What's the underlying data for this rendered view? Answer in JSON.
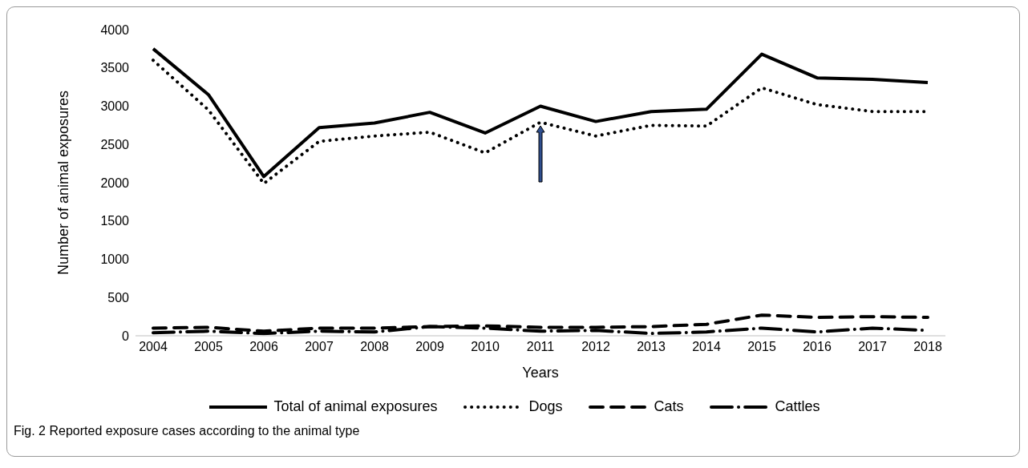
{
  "chart_data": {
    "type": "line",
    "xlabel": "Years",
    "ylabel": "Number of animal exposures",
    "categories": [
      "2004",
      "2005",
      "2006",
      "2007",
      "2008",
      "2009",
      "2010",
      "2011",
      "2012",
      "2013",
      "2014",
      "2015",
      "2016",
      "2017",
      "2018"
    ],
    "series": [
      {
        "name": "Total of animal exposures",
        "color": "#000000",
        "line_style": "solid",
        "values": [
          3750,
          3150,
          2080,
          2720,
          2780,
          2920,
          2650,
          3000,
          2800,
          2930,
          2960,
          3680,
          3370,
          3350,
          3310
        ]
      },
      {
        "name": "Dogs",
        "color": "#000000",
        "line_style": "dotted",
        "values": [
          3600,
          2950,
          1990,
          2540,
          2610,
          2660,
          2390,
          2790,
          2610,
          2750,
          2740,
          3240,
          3020,
          2930,
          2930
        ]
      },
      {
        "name": "Cats",
        "color": "#000000",
        "line_style": "dashed",
        "values": [
          100,
          110,
          60,
          100,
          100,
          120,
          130,
          110,
          110,
          120,
          150,
          270,
          240,
          250,
          240
        ]
      },
      {
        "name": "Cattles",
        "color": "#000000",
        "line_style": "dashdot",
        "values": [
          40,
          60,
          30,
          60,
          50,
          120,
          100,
          60,
          70,
          30,
          50,
          100,
          50,
          100,
          70
        ]
      }
    ],
    "ylim": [
      0,
      4000
    ],
    "yticks": [
      0,
      500,
      1000,
      1500,
      2000,
      2500,
      3000,
      3500,
      4000
    ],
    "legend": "bottom",
    "marker": "none",
    "annotations": [
      "Fig. 2 Reported exposure cases according to the animal type"
    ]
  }
}
